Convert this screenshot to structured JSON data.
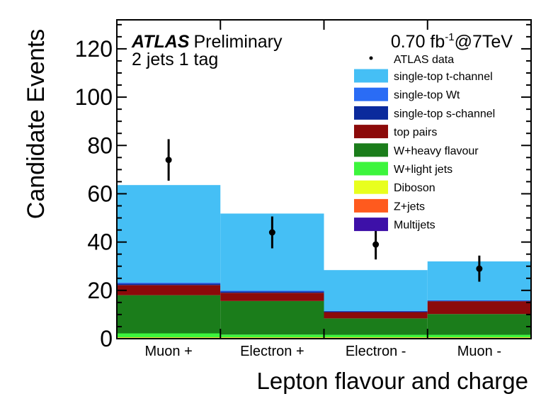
{
  "chart_data": {
    "type": "bar",
    "stacked": true,
    "title": "",
    "xlabel": "Lepton flavour and charge",
    "ylabel": "Candidate Events",
    "ylim": [
      0,
      132
    ],
    "yticks": [
      0,
      20,
      40,
      60,
      80,
      100,
      120
    ],
    "categories": [
      "Muon +",
      "Electron +",
      "Electron -",
      "Muon -"
    ],
    "series": [
      {
        "name": "Multijets",
        "color": "#3d10a8",
        "values": [
          0.2,
          0.2,
          0.2,
          0.2
        ]
      },
      {
        "name": "Z+jets",
        "color": "#ff5a1e",
        "values": [
          0.2,
          0.2,
          0.2,
          0.2
        ]
      },
      {
        "name": "Diboson",
        "color": "#e8ff1e",
        "values": [
          0.2,
          0.2,
          0.2,
          0.2
        ]
      },
      {
        "name": "W+light jets",
        "color": "#3cf53c",
        "values": [
          1.6,
          1.1,
          1.0,
          1.0
        ]
      },
      {
        "name": "W+heavy flavour",
        "color": "#1b7d1b",
        "values": [
          15.8,
          13.9,
          6.8,
          8.6
        ]
      },
      {
        "name": "top pairs",
        "color": "#8c0a0a",
        "values": [
          4.2,
          3.4,
          2.6,
          5.3
        ]
      },
      {
        "name": "single-top s-channel",
        "color": "#0b2a9c",
        "values": [
          0.6,
          0.5,
          0.3,
          0.2
        ]
      },
      {
        "name": "single-top Wt",
        "color": "#2a6cf5",
        "values": [
          0.4,
          0.4,
          0.2,
          0.2
        ]
      },
      {
        "name": "single-top t-channel",
        "color": "#45bff5",
        "values": [
          40.4,
          31.9,
          16.9,
          16.1
        ]
      }
    ],
    "data": {
      "name": "ATLAS data",
      "values": [
        74,
        44,
        39,
        29
      ],
      "errors": [
        8.6,
        6.6,
        6.2,
        5.4
      ]
    },
    "legend_position": "top-right",
    "annotations": {
      "experiment": "ATLAS",
      "status": "Preliminary",
      "selection": "2 jets 1 tag",
      "lumi_value": "0.70 fb",
      "lumi_exponent": "-1",
      "energy": "@7TeV"
    }
  }
}
